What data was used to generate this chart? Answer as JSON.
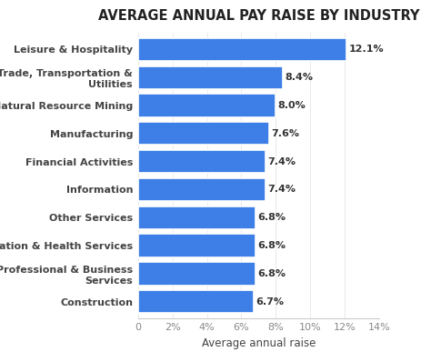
{
  "title": "AVERAGE ANNUAL PAY RAISE BY INDUSTRY",
  "xlabel": "Average annual raise",
  "categories": [
    "Construction",
    "Professional & Business\nServices",
    "Education & Health Services",
    "Other Services",
    "Information",
    "Financial Activities",
    "Manufacturing",
    "Natural Resource Mining",
    "Trade, Transportation &\nUtilities",
    "Leisure & Hospitality"
  ],
  "values": [
    6.7,
    6.8,
    6.8,
    6.8,
    7.4,
    7.4,
    7.6,
    8.0,
    8.4,
    12.1
  ],
  "labels": [
    "6.7%",
    "6.8%",
    "6.8%",
    "6.8%",
    "7.4%",
    "7.4%",
    "7.6%",
    "8.0%",
    "8.4%",
    "12.1%"
  ],
  "bar_color": "#3d7fe6",
  "background_color": "#ffffff",
  "title_fontsize": 10.5,
  "label_fontsize": 8,
  "tick_fontsize": 8,
  "xlabel_fontsize": 8.5,
  "xlim": [
    0,
    14
  ],
  "xticks": [
    0,
    2,
    4,
    6,
    8,
    10,
    12,
    14
  ],
  "xtick_labels": [
    "0",
    "2%",
    "4%",
    "6%",
    "8%",
    "10%",
    "12%",
    "14%"
  ]
}
